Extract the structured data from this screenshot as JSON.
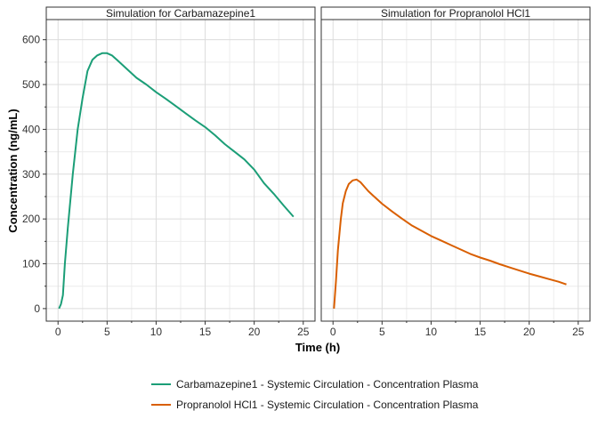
{
  "chart_data": {
    "type": "line",
    "ylabel": "Concentration (ng/mL)",
    "xlabel": "Time (h)",
    "xlim": [
      -1.2,
      26.2
    ],
    "ylim": [
      -28,
      645
    ],
    "xticks": [
      0,
      5,
      10,
      15,
      20,
      25
    ],
    "yticks": [
      0,
      100,
      200,
      300,
      400,
      500,
      600
    ],
    "grid": true,
    "legend_position": "bottom",
    "panels": [
      {
        "title": "Simulation for Carbamazepine1",
        "series": [
          {
            "name": "Carbamazepine1 - Systemic Circulation - Concentration Plasma",
            "color": "#1b9e77",
            "x": [
              0.1,
              0.3,
              0.5,
              0.7,
              1.0,
              1.5,
              2.0,
              2.5,
              3.0,
              3.5,
              4.0,
              4.5,
              5.0,
              5.5,
              6.0,
              7.0,
              8.0,
              9.0,
              10.0,
              11.0,
              12.0,
              13.0,
              14.0,
              15.0,
              16.0,
              17.0,
              18.0,
              19.0,
              20.0,
              21.0,
              22.0,
              23.0,
              24.0
            ],
            "y": [
              0,
              10,
              30,
              100,
              180,
              300,
              400,
              470,
              530,
              555,
              565,
              570,
              570,
              565,
              555,
              535,
              515,
              500,
              483,
              468,
              452,
              436,
              420,
              405,
              387,
              367,
              350,
              333,
              310,
              280,
              256,
              230,
              205
            ]
          }
        ]
      },
      {
        "title": "Simulation for Propranolol HCl1",
        "series": [
          {
            "name": "Propranolol HCl1 - Systemic Circulation - Concentration Plasma",
            "color": "#d95f02",
            "x": [
              0.1,
              0.3,
              0.5,
              0.8,
              1.0,
              1.3,
              1.6,
              2.0,
              2.4,
              2.8,
              3.2,
              3.6,
              4.0,
              5.0,
              6.0,
              7.0,
              8.0,
              9.0,
              10.0,
              11.0,
              12.0,
              13.0,
              14.0,
              15.0,
              16.0,
              17.0,
              18.0,
              19.0,
              20.0,
              21.0,
              22.0,
              23.0,
              23.8
            ],
            "y": [
              0,
              60,
              130,
              200,
              235,
              262,
              278,
              286,
              288,
              282,
              272,
              262,
              254,
              234,
              217,
              201,
              186,
              174,
              162,
              152,
              142,
              132,
              122,
              114,
              107,
              99,
              92,
              85,
              78,
              72,
              66,
              60,
              54
            ]
          }
        ]
      }
    ]
  }
}
